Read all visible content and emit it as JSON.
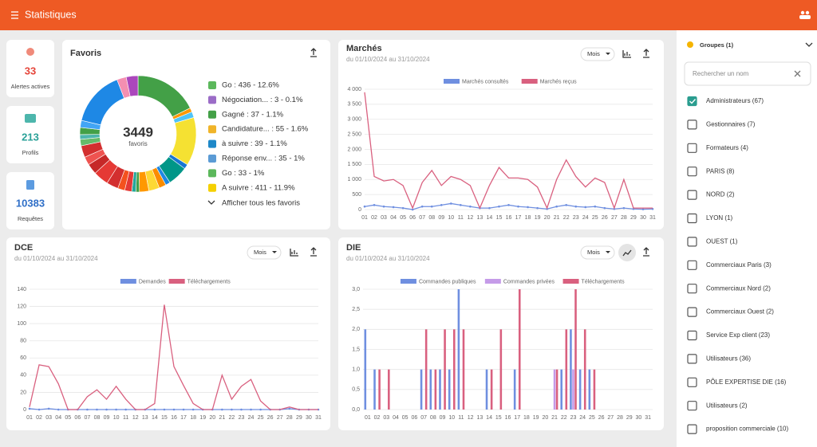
{
  "header": {
    "title": "Statistiques"
  },
  "stats": [
    {
      "value": 33,
      "label": "Alertes actives"
    },
    {
      "value": 213,
      "label": "Profils"
    },
    {
      "value": 10383,
      "label": "Requêtes"
    }
  ],
  "favoris": {
    "title": "Favoris",
    "total": 3449,
    "total_label": "favoris",
    "legend": [
      "Go : 436 - 12.6%",
      "Négociation... : 3 - 0.1%",
      "Gagné : 37 - 1.1%",
      "Candidature... : 55 - 1.6%",
      "à suivre : 39 - 1.1%",
      "Réponse env... : 35 - 1%",
      "Go : 33 - 1%",
      "A suivre : 411 - 11.9%"
    ],
    "show_all": "Afficher tous les favoris",
    "slices": [
      540,
      35,
      50,
      411,
      40,
      170,
      40,
      60,
      90,
      80,
      30,
      35,
      60,
      60,
      100,
      130,
      90,
      70,
      100,
      55,
      40,
      60,
      60,
      470,
      80,
      100
    ],
    "slice_colors": [
      "#43a047",
      "#ff9800",
      "#4fc3f7",
      "#f5e132",
      "#1976d2",
      "#009688",
      "#1e88e5",
      "#fb8c00",
      "#fdd835",
      "#ff9800",
      "#43a047",
      "#26a69a",
      "#e53935",
      "#f4511e",
      "#d32f2f",
      "#e53935",
      "#c62828",
      "#ef5350",
      "#d32f2f",
      "#66bb6a",
      "#4db6ac",
      "#43a047",
      "#42a5f5",
      "#1e88e5",
      "#f48fb1",
      "#ab47bc"
    ]
  },
  "marches": {
    "title": "Marchés",
    "period": "du 01/10/2024 au 31/10/2024",
    "period_button": "Mois",
    "chart": {
      "type": "line",
      "categories": [
        "01",
        "02",
        "03",
        "04",
        "05",
        "06",
        "07",
        "08",
        "09",
        "10",
        "11",
        "12",
        "13",
        "14",
        "15",
        "16",
        "17",
        "18",
        "19",
        "20",
        "21",
        "22",
        "23",
        "24",
        "25",
        "26",
        "27",
        "28",
        "29",
        "30",
        "31"
      ],
      "series": [
        {
          "name": "Marchés consultés",
          "color": "#6f8fe0",
          "values": [
            100,
            150,
            100,
            80,
            50,
            0,
            100,
            100,
            150,
            200,
            150,
            100,
            50,
            50,
            100,
            150,
            100,
            80,
            50,
            20,
            100,
            150,
            100,
            80,
            100,
            50,
            20,
            50,
            20,
            10,
            20
          ]
        },
        {
          "name": "Marchés reçus",
          "color": "#d9607f",
          "values": [
            3900,
            1100,
            950,
            1000,
            800,
            50,
            900,
            1300,
            800,
            1100,
            1000,
            800,
            50,
            800,
            1400,
            1050,
            1050,
            1000,
            750,
            50,
            1000,
            1650,
            1100,
            750,
            1050,
            900,
            50,
            1000,
            50,
            50,
            50
          ]
        }
      ],
      "ylim": [
        0,
        4000
      ],
      "yticks": [
        0,
        500,
        {
          "value": 1000,
          "label": "1 000"
        },
        {
          "value": 1500,
          "label": "1 500"
        },
        {
          "value": 2000,
          "label": "2 000"
        },
        {
          "value": 2500,
          "label": "2 500"
        },
        {
          "value": 3000,
          "label": "3 000"
        },
        {
          "value": 3500,
          "label": "3 500"
        },
        {
          "value": 4000,
          "label": "4 000"
        }
      ],
      "grid": true
    }
  },
  "dce": {
    "title": "DCE",
    "period": "du 01/10/2024 au 31/10/2024",
    "period_button": "Mois",
    "chart": {
      "type": "line",
      "categories": [
        "01",
        "02",
        "03",
        "04",
        "05",
        "06",
        "07",
        "08",
        "09",
        "10",
        "11",
        "12",
        "13",
        "14",
        "15",
        "16",
        "17",
        "18",
        "19",
        "20",
        "21",
        "22",
        "23",
        "24",
        "25",
        "26",
        "27",
        "28",
        "29",
        "30",
        "31"
      ],
      "series": [
        {
          "name": "Demandes",
          "color": "#6f8fe0",
          "values": [
            1,
            0,
            1,
            0,
            0,
            0,
            0,
            0,
            0,
            0,
            0,
            0,
            0,
            0,
            0,
            0,
            0,
            0,
            0,
            0,
            0,
            0,
            0,
            0,
            0,
            0,
            0,
            1,
            0,
            0,
            0
          ]
        },
        {
          "name": "Téléchargements",
          "color": "#d9607f",
          "values": [
            3,
            52,
            50,
            30,
            0,
            0,
            15,
            23,
            12,
            27,
            12,
            0,
            0,
            7,
            122,
            50,
            28,
            7,
            0,
            0,
            40,
            12,
            27,
            35,
            10,
            0,
            0,
            3,
            0,
            0,
            0
          ]
        }
      ],
      "ylim": [
        0,
        140
      ],
      "yticks": [
        0,
        20,
        40,
        60,
        80,
        100,
        120,
        140
      ],
      "grid": true
    }
  },
  "die": {
    "title": "DIE",
    "period": "du 01/10/2024 au 31/10/2024",
    "period_button": "Mois",
    "chart": {
      "type": "bar",
      "categories": [
        "01",
        "02",
        "03",
        "04",
        "05",
        "06",
        "07",
        "08",
        "09",
        "10",
        "11",
        "12",
        "13",
        "14",
        "15",
        "16",
        "17",
        "18",
        "19",
        "20",
        "21",
        "22",
        "23",
        "24",
        "25",
        "26",
        "27",
        "28",
        "29",
        "30",
        "31"
      ],
      "series": [
        {
          "name": "Commandes publiques",
          "color": "#6f8fe0",
          "values": [
            2,
            1,
            0,
            0,
            0,
            0,
            1,
            1,
            1,
            1,
            3,
            0,
            0,
            1,
            0,
            0,
            1,
            0,
            0,
            0,
            0,
            1,
            2,
            1,
            1,
            0,
            0,
            0,
            0,
            0,
            0
          ]
        },
        {
          "name": "Commandes privées",
          "color": "#c59be8",
          "values": [
            0,
            0,
            0,
            0,
            0,
            0,
            0,
            0,
            0,
            0,
            0,
            0,
            0,
            0,
            0,
            0,
            0,
            0,
            0,
            0,
            1,
            0,
            1,
            0,
            0,
            0,
            0,
            0,
            0,
            0,
            0
          ]
        },
        {
          "name": "Téléchargements",
          "color": "#d9607f",
          "values": [
            0,
            1,
            1,
            0,
            0,
            0,
            2,
            1,
            2,
            2,
            2,
            0,
            0,
            1,
            2,
            0,
            3,
            0,
            0,
            0,
            1,
            2,
            3,
            2,
            1,
            0,
            0,
            0,
            0,
            0,
            0
          ]
        }
      ],
      "ylim": [
        0,
        3
      ],
      "yticks": [
        {
          "value": 0,
          "label": "0,0"
        },
        {
          "value": 0.5,
          "label": "0,5"
        },
        {
          "value": 1,
          "label": "1,0"
        },
        {
          "value": 1.5,
          "label": "1,5"
        },
        {
          "value": 2,
          "label": "2,0"
        },
        {
          "value": 2.5,
          "label": "2,5"
        },
        {
          "value": 3,
          "label": "3,0"
        }
      ],
      "grid": true
    }
  },
  "groups": {
    "title": "Groupes (1)",
    "search_placeholder": "Rechercher un nom",
    "items": [
      {
        "label": "Administrateurs (67)",
        "checked": true
      },
      {
        "label": "Gestionnaires (7)",
        "checked": false
      },
      {
        "label": "Formateurs (4)",
        "checked": false
      },
      {
        "label": "PARIS (8)",
        "checked": false
      },
      {
        "label": "NORD (2)",
        "checked": false
      },
      {
        "label": "LYON (1)",
        "checked": false
      },
      {
        "label": "OUEST (1)",
        "checked": false
      },
      {
        "label": "Commerciaux Paris  (3)",
        "checked": false
      },
      {
        "label": "Commerciaux Nord (2)",
        "checked": false
      },
      {
        "label": "Commerciaux Ouest (2)",
        "checked": false
      },
      {
        "label": "Service Exp client (23)",
        "checked": false
      },
      {
        "label": "Utilisateurs (36)",
        "checked": false
      },
      {
        "label": "PÔLE EXPERTISE DIE (16)",
        "checked": false
      },
      {
        "label": "Utilisateurs (2)",
        "checked": false
      },
      {
        "label": "proposition commerciale (10)",
        "checked": false
      }
    ]
  }
}
